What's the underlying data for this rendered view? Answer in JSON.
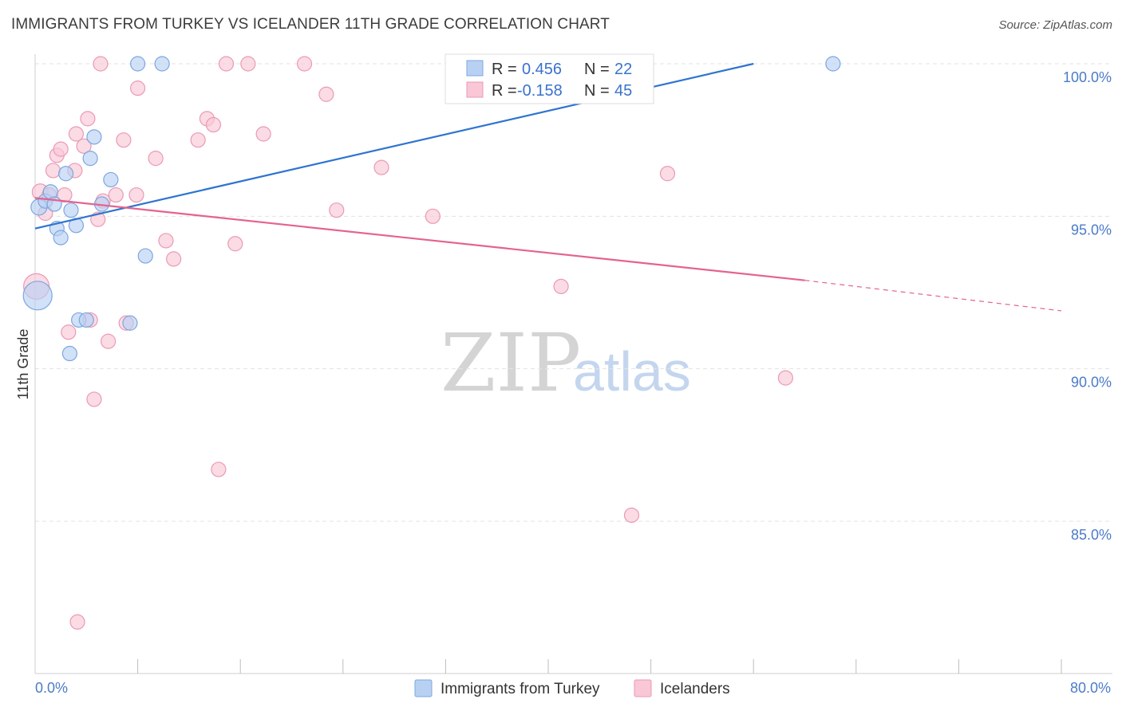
{
  "header": {
    "title": "IMMIGRANTS FROM TURKEY VS ICELANDER 11TH GRADE CORRELATION CHART",
    "source": "Source: ZipAtlas.com"
  },
  "watermark": {
    "zip": "ZIP",
    "atlas": "atlas"
  },
  "legend_box": {
    "rows": [
      {
        "r_label": "R =",
        "r_value": "0.456",
        "n_label": "N =",
        "n_value": "22"
      },
      {
        "r_label": "R =",
        "r_value": "-0.158",
        "n_label": "N =",
        "n_value": "45"
      }
    ]
  },
  "bottom_legend": {
    "items": [
      {
        "label": "Immigrants from Turkey"
      },
      {
        "label": "Icelanders"
      }
    ]
  },
  "colors": {
    "series_a_fill": "#b8d1f3",
    "series_a_stroke": "#7da7e0",
    "series_a_line": "#2f74d0",
    "series_b_fill": "#f9c7d6",
    "series_b_stroke": "#ea9ab4",
    "series_b_line": "#e4638f",
    "grid": "#e3e3e3",
    "tick_label": "#4a7cc9"
  },
  "chart_data": {
    "type": "scatter",
    "title": "IMMIGRANTS FROM TURKEY VS ICELANDER 11TH GRADE CORRELATION CHART",
    "xlabel": "",
    "ylabel": "11th Grade",
    "xlim": [
      0,
      80
    ],
    "ylim": [
      80.5,
      100.4
    ],
    "x_tick_labels": [
      "0.0%",
      "80.0%"
    ],
    "y_ticks": [
      {
        "value": 85,
        "label": "85.0%"
      },
      {
        "value": 90,
        "label": "90.0%"
      },
      {
        "value": 95,
        "label": "95.0%"
      },
      {
        "value": 100,
        "label": "100.0%"
      }
    ],
    "x_minor_ticks": [
      8,
      16,
      24,
      32,
      40,
      48,
      56,
      64,
      72,
      80
    ],
    "series": [
      {
        "name": "Immigrants from Turkey",
        "R": 0.456,
        "N": 22,
        "trend": {
          "x0": 0,
          "y0": 94.6,
          "x1": 56,
          "y1": 100.0,
          "dashed_to": null
        },
        "points": [
          [
            0.2,
            92.4,
            18
          ],
          [
            0.3,
            95.3,
            10
          ],
          [
            0.8,
            95.5,
            9
          ],
          [
            1.2,
            95.8,
            9
          ],
          [
            1.5,
            95.4,
            9
          ],
          [
            1.7,
            94.6,
            9
          ],
          [
            2.0,
            94.3,
            9
          ],
          [
            2.4,
            96.4,
            9
          ],
          [
            2.8,
            95.2,
            9
          ],
          [
            3.2,
            94.7,
            9
          ],
          [
            3.4,
            91.6,
            9
          ],
          [
            2.7,
            90.5,
            9
          ],
          [
            4.0,
            91.6,
            9
          ],
          [
            4.3,
            96.9,
            9
          ],
          [
            4.6,
            97.6,
            9
          ],
          [
            5.2,
            95.4,
            9
          ],
          [
            5.9,
            96.2,
            9
          ],
          [
            7.4,
            91.5,
            9
          ],
          [
            8.0,
            100.0,
            9
          ],
          [
            8.6,
            93.7,
            9
          ],
          [
            9.9,
            100.0,
            9
          ],
          [
            62.2,
            100.0,
            9
          ]
        ]
      },
      {
        "name": "Icelanders",
        "R": -0.158,
        "N": 45,
        "trend": {
          "x0": 0,
          "y0": 95.6,
          "x1": 60,
          "y1": 92.9,
          "dashed_to": {
            "x": 80,
            "y": 91.9
          }
        },
        "points": [
          [
            0.1,
            92.7,
            16
          ],
          [
            0.4,
            95.8,
            10
          ],
          [
            0.8,
            95.1,
            9
          ],
          [
            1.1,
            95.7,
            9
          ],
          [
            1.4,
            96.5,
            9
          ],
          [
            1.7,
            97.0,
            9
          ],
          [
            2.0,
            97.2,
            9
          ],
          [
            2.3,
            95.7,
            9
          ],
          [
            2.6,
            91.2,
            9
          ],
          [
            3.1,
            96.5,
            9
          ],
          [
            3.2,
            97.7,
            9
          ],
          [
            3.3,
            81.7,
            9
          ],
          [
            3.8,
            97.3,
            9
          ],
          [
            4.1,
            98.2,
            9
          ],
          [
            4.3,
            91.6,
            9
          ],
          [
            4.6,
            89.0,
            9
          ],
          [
            4.9,
            94.9,
            9
          ],
          [
            5.3,
            95.5,
            9
          ],
          [
            5.7,
            90.9,
            9
          ],
          [
            6.3,
            95.7,
            9
          ],
          [
            6.9,
            97.5,
            9
          ],
          [
            7.1,
            91.5,
            9
          ],
          [
            7.9,
            95.7,
            9
          ],
          [
            8.0,
            99.2,
            9
          ],
          [
            5.1,
            100.0,
            9
          ],
          [
            9.4,
            96.9,
            9
          ],
          [
            10.2,
            94.2,
            9
          ],
          [
            10.8,
            93.6,
            9
          ],
          [
            12.7,
            97.5,
            9
          ],
          [
            13.4,
            98.2,
            9
          ],
          [
            13.9,
            98.0,
            9
          ],
          [
            14.3,
            86.7,
            9
          ],
          [
            14.9,
            100.0,
            9
          ],
          [
            15.6,
            94.1,
            9
          ],
          [
            16.6,
            100.0,
            9
          ],
          [
            17.8,
            97.7,
            9
          ],
          [
            21.0,
            100.0,
            9
          ],
          [
            22.7,
            99.0,
            9
          ],
          [
            23.5,
            95.2,
            9
          ],
          [
            27.0,
            96.6,
            9
          ],
          [
            31.0,
            95.0,
            9
          ],
          [
            41.0,
            92.7,
            9
          ],
          [
            46.5,
            85.2,
            9
          ],
          [
            49.3,
            96.4,
            9
          ],
          [
            58.5,
            89.7,
            9
          ]
        ]
      }
    ]
  }
}
